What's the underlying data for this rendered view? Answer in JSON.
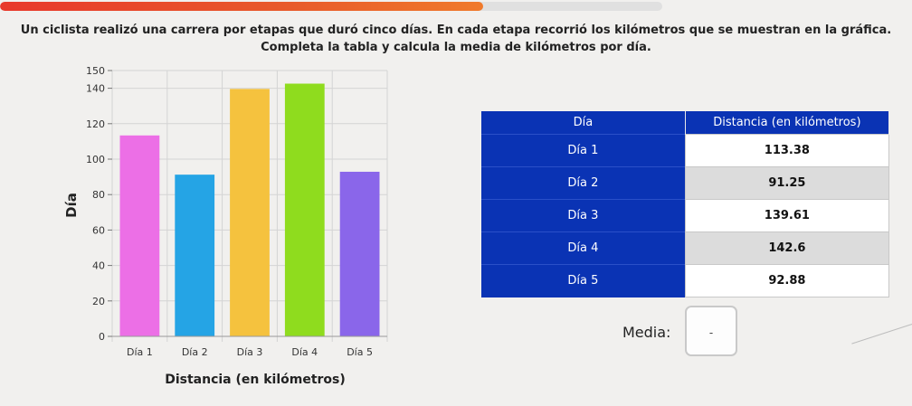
{
  "progress": {
    "fraction": 0.73
  },
  "question": {
    "line1": "Un ciclista realizó una carrera por etapas que duró cinco días. En cada etapa recorrió los kilómetros que se muestran en la gráfica.",
    "line2": "Completa la tabla y calcula la media de kilómetros por día."
  },
  "chart_data": {
    "type": "bar",
    "categories": [
      "Día 1",
      "Día 2",
      "Día 3",
      "Día 4",
      "Día 5"
    ],
    "values": [
      113.38,
      91.25,
      139.61,
      142.6,
      92.88
    ],
    "colors": [
      "#ec6fe6",
      "#25a4e5",
      "#f5c23e",
      "#8fdc1e",
      "#8a66ea"
    ],
    "xlabel": "Distancia (en kilómetros)",
    "ylabel": "Día",
    "ylim": [
      0,
      150
    ],
    "yticks": [
      0,
      20,
      40,
      60,
      80,
      100,
      120,
      140,
      150
    ],
    "grid": true
  },
  "table": {
    "headers": [
      "Día",
      "Distancia (en kilómetros)"
    ],
    "rows": [
      {
        "day": "Día 1",
        "distance": "113.38"
      },
      {
        "day": "Día 2",
        "distance": "91.25"
      },
      {
        "day": "Día 3",
        "distance": "139.61"
      },
      {
        "day": "Día 4",
        "distance": "142.6"
      },
      {
        "day": "Día 5",
        "distance": "92.88"
      }
    ]
  },
  "media": {
    "label": "Media:",
    "value": "-"
  }
}
